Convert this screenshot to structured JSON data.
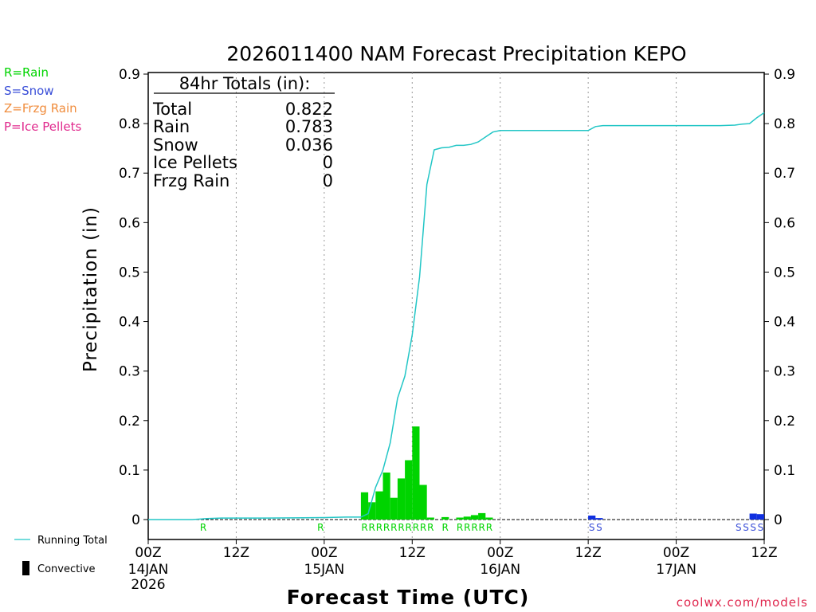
{
  "colors": {
    "rain": "#00d400",
    "snow": "#3a4fd8",
    "frzg_rain": "#f08c3c",
    "ice_pellets": "#e0288c",
    "running_total": "#22c6c6",
    "credit": "#e0284e",
    "snow_bar": "#1030e0"
  },
  "legend_types": [
    {
      "label": "R=Rain",
      "color_key": "rain"
    },
    {
      "label": "S=Snow",
      "color_key": "snow"
    },
    {
      "label": "Z=Frzg Rain",
      "color_key": "frzg_rain"
    },
    {
      "label": "P=Ice Pellets",
      "color_key": "ice_pellets"
    }
  ],
  "legend_bottom": {
    "running_total": "Running Total",
    "convective": "Convective"
  },
  "totals": {
    "header": "84hr Totals (in):",
    "rows": [
      {
        "label": "Total",
        "value": "0.822"
      },
      {
        "label": "Rain",
        "value": "0.783"
      },
      {
        "label": "Snow",
        "value": "0.036"
      },
      {
        "label": "Ice Pellets",
        "value": "0"
      },
      {
        "label": "Frzg Rain",
        "value": "0"
      }
    ]
  },
  "credit": "coolwx.com/models",
  "chart_data": {
    "type": "bar",
    "title": "2026011400 NAM Forecast Precipitation KEPO",
    "xlabel": "Forecast Time (UTC)",
    "ylabel": "Precipitation (in)",
    "xlim": [
      0,
      84
    ],
    "ylim": [
      0,
      0.9
    ],
    "grid": "vertical dotted",
    "y_ticks": [
      0,
      0.1,
      0.2,
      0.3,
      0.4,
      0.5,
      0.6,
      0.7,
      0.8,
      0.9
    ],
    "y_tick_labels": [
      "0",
      "0.1",
      "0.2",
      "0.3",
      "0.4",
      "0.5",
      "0.6",
      "0.7",
      "0.8",
      "0.9"
    ],
    "x_ticks": [
      {
        "hour": 0,
        "label": "00Z",
        "date": "14JAN",
        "year": "2026"
      },
      {
        "hour": 12,
        "label": "12Z"
      },
      {
        "hour": 24,
        "label": "00Z",
        "date": "15JAN"
      },
      {
        "hour": 36,
        "label": "12Z"
      },
      {
        "hour": 48,
        "label": "00Z",
        "date": "16JAN"
      },
      {
        "hour": 60,
        "label": "12Z"
      },
      {
        "hour": 72,
        "label": "00Z",
        "date": "17JAN"
      },
      {
        "hour": 84,
        "label": "12Z"
      }
    ],
    "hourly_precip": [
      {
        "hour": 30,
        "value": 0.055,
        "type": "rain"
      },
      {
        "hour": 31,
        "value": 0.035,
        "type": "rain"
      },
      {
        "hour": 32,
        "value": 0.057,
        "type": "rain"
      },
      {
        "hour": 33,
        "value": 0.095,
        "type": "rain"
      },
      {
        "hour": 34,
        "value": 0.044,
        "type": "rain"
      },
      {
        "hour": 35,
        "value": 0.083,
        "type": "rain"
      },
      {
        "hour": 36,
        "value": 0.12,
        "type": "rain"
      },
      {
        "hour": 37,
        "value": 0.188,
        "type": "rain"
      },
      {
        "hour": 38,
        "value": 0.07,
        "type": "rain"
      },
      {
        "hour": 39,
        "value": 0.004,
        "type": "rain"
      },
      {
        "hour": 41,
        "value": 0.005,
        "type": "rain"
      },
      {
        "hour": 43,
        "value": 0.004,
        "type": "rain"
      },
      {
        "hour": 44,
        "value": 0.006,
        "type": "rain"
      },
      {
        "hour": 45,
        "value": 0.009,
        "type": "rain"
      },
      {
        "hour": 46,
        "value": 0.013,
        "type": "rain"
      },
      {
        "hour": 47,
        "value": 0.004,
        "type": "rain"
      },
      {
        "hour": 61,
        "value": 0.008,
        "type": "snow"
      },
      {
        "hour": 62,
        "value": 0.003,
        "type": "snow"
      },
      {
        "hour": 83,
        "value": 0.012,
        "type": "snow"
      },
      {
        "hour": 84,
        "value": 0.011,
        "type": "snow"
      }
    ],
    "running_total": {
      "x": [
        0,
        6,
        8,
        10,
        16,
        24,
        27,
        29,
        30,
        31,
        32,
        33,
        34,
        35,
        36,
        37,
        38,
        39,
        40,
        41,
        42,
        43,
        44,
        45,
        46,
        47,
        48,
        54,
        60,
        61,
        62,
        66,
        72,
        78,
        80,
        81,
        82,
        83,
        84
      ],
      "y": [
        0,
        0,
        0.002,
        0.003,
        0.003,
        0.004,
        0.005,
        0.005,
        0.012,
        0.065,
        0.1,
        0.155,
        0.245,
        0.29,
        0.373,
        0.49,
        0.677,
        0.747,
        0.751,
        0.752,
        0.756,
        0.756,
        0.758,
        0.763,
        0.773,
        0.783,
        0.786,
        0.786,
        0.786,
        0.794,
        0.796,
        0.796,
        0.796,
        0.796,
        0.797,
        0.799,
        0.8,
        0.812,
        0.822
      ]
    },
    "ptype_markers": [
      {
        "hour": 8,
        "code": "R",
        "type": "rain"
      },
      {
        "hour": 24,
        "code": "R",
        "type": "rain"
      },
      {
        "hour": 30,
        "code": "R",
        "type": "rain"
      },
      {
        "hour": 31,
        "code": "R",
        "type": "rain"
      },
      {
        "hour": 32,
        "code": "R",
        "type": "rain"
      },
      {
        "hour": 33,
        "code": "R",
        "type": "rain"
      },
      {
        "hour": 34,
        "code": "R",
        "type": "rain"
      },
      {
        "hour": 35,
        "code": "R",
        "type": "rain"
      },
      {
        "hour": 36,
        "code": "R",
        "type": "rain"
      },
      {
        "hour": 37,
        "code": "R",
        "type": "rain"
      },
      {
        "hour": 38,
        "code": "R",
        "type": "rain"
      },
      {
        "hour": 39,
        "code": "R",
        "type": "rain"
      },
      {
        "hour": 41,
        "code": "R",
        "type": "rain"
      },
      {
        "hour": 43,
        "code": "R",
        "type": "rain"
      },
      {
        "hour": 44,
        "code": "R",
        "type": "rain"
      },
      {
        "hour": 45,
        "code": "R",
        "type": "rain"
      },
      {
        "hour": 46,
        "code": "R",
        "type": "rain"
      },
      {
        "hour": 47,
        "code": "R",
        "type": "rain"
      },
      {
        "hour": 61,
        "code": "S",
        "type": "snow"
      },
      {
        "hour": 62,
        "code": "S",
        "type": "snow"
      },
      {
        "hour": 81,
        "code": "S",
        "type": "snow"
      },
      {
        "hour": 82,
        "code": "S",
        "type": "snow"
      },
      {
        "hour": 83,
        "code": "S",
        "type": "snow"
      },
      {
        "hour": 84,
        "code": "S",
        "type": "snow"
      }
    ]
  }
}
